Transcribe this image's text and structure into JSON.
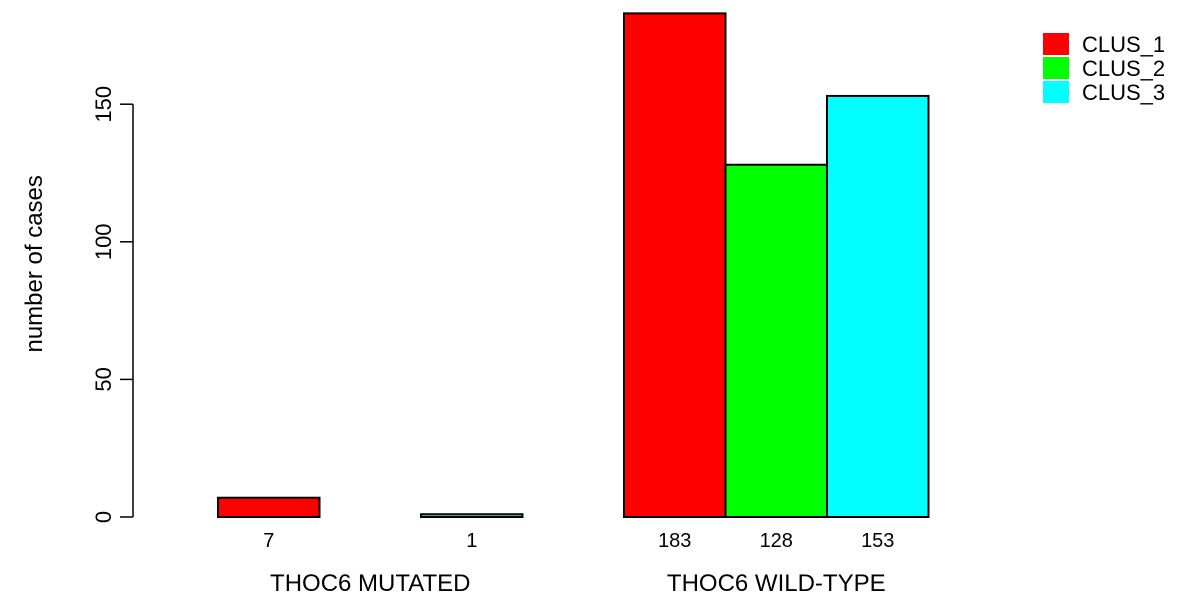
{
  "chart_data": {
    "type": "bar",
    "groups": [
      "THOC6 MUTATED",
      "THOC6 WILD-TYPE"
    ],
    "series": [
      {
        "name": "CLUS_1",
        "color": "#ff0000",
        "values": [
          7,
          183
        ]
      },
      {
        "name": "CLUS_2",
        "color": "#00ff00",
        "values": [
          0,
          128
        ]
      },
      {
        "name": "CLUS_3",
        "color": "#00ffff",
        "values": [
          1,
          153
        ]
      }
    ],
    "data_labels": [
      [
        "7",
        "",
        "1"
      ],
      [
        "183",
        "128",
        "153"
      ]
    ],
    "ylabel": "number of cases",
    "yticks": [
      0,
      50,
      100,
      150
    ],
    "ylim": [
      0,
      185
    ],
    "legend_position": "top-right",
    "grid": false
  }
}
